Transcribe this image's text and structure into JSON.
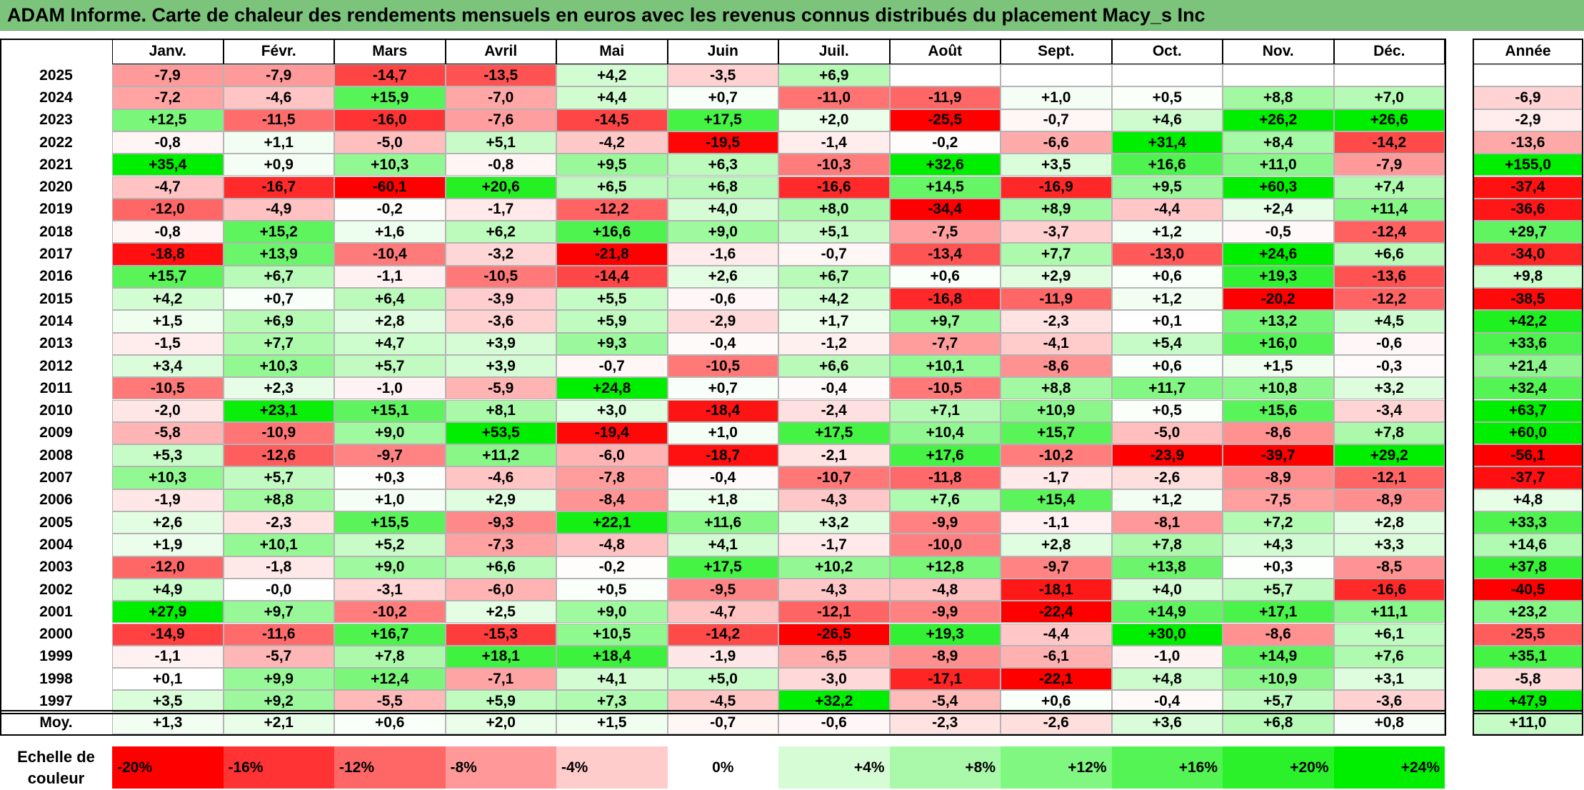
{
  "title": "ADAM Informe. Carte de chaleur des rendements mensuels en euros avec les revenus connus distribués du placement Macy_s Inc",
  "colors": {
    "title_bg": "#7cc47c",
    "positive_max": "#00ee00",
    "negative_max": "#ff0000",
    "neutral": "#ffffff"
  },
  "chart_data": {
    "type": "heatmap",
    "title": "ADAM Informe. Carte de chaleur des rendements mensuels en euros avec les revenus connus distribués du placement Macy_s Inc",
    "months": [
      "Janv.",
      "Févr.",
      "Mars",
      "Avril",
      "Mai",
      "Juin",
      "Juil.",
      "Août",
      "Sept.",
      "Oct.",
      "Nov.",
      "Déc."
    ],
    "annual_header": "Année",
    "rows": [
      {
        "year": "2025",
        "values": [
          "-7,9",
          "-7,9",
          "-14,7",
          "-13,5",
          "+4,2",
          "-3,5",
          "+6,9",
          "",
          "",
          "",
          "",
          ""
        ],
        "annual": ""
      },
      {
        "year": "2024",
        "values": [
          "-7,2",
          "-4,6",
          "+15,9",
          "-7,0",
          "+4,4",
          "+0,7",
          "-11,0",
          "-11,9",
          "+1,0",
          "+0,5",
          "+8,8",
          "+7,0"
        ],
        "annual": "-6,9"
      },
      {
        "year": "2023",
        "values": [
          "+12,5",
          "-11,5",
          "-16,0",
          "-7,6",
          "-14,5",
          "+17,5",
          "+2,0",
          "-25,5",
          "-0,7",
          "+4,6",
          "+26,2",
          "+26,6"
        ],
        "annual": "-2,9"
      },
      {
        "year": "2022",
        "values": [
          "-0,8",
          "+1,1",
          "-5,0",
          "+5,1",
          "-4,2",
          "-19,5",
          "-1,4",
          "-0,2",
          "-6,6",
          "+31,4",
          "+8,4",
          "-14,2"
        ],
        "annual": "-13,6"
      },
      {
        "year": "2021",
        "values": [
          "+35,4",
          "+0,9",
          "+10,3",
          "-0,8",
          "+9,5",
          "+6,3",
          "-10,3",
          "+32,6",
          "+3,5",
          "+16,6",
          "+11,0",
          "-7,9"
        ],
        "annual": "+155,0"
      },
      {
        "year": "2020",
        "values": [
          "-4,7",
          "-16,7",
          "-60,1",
          "+20,6",
          "+6,5",
          "+6,8",
          "-16,6",
          "+14,5",
          "-16,9",
          "+9,5",
          "+60,3",
          "+7,4"
        ],
        "annual": "-37,4"
      },
      {
        "year": "2019",
        "values": [
          "-12,0",
          "-4,9",
          "-0,2",
          "-1,7",
          "-12,2",
          "+4,0",
          "+8,0",
          "-34,4",
          "+8,9",
          "-4,4",
          "+2,4",
          "+11,4"
        ],
        "annual": "-36,6"
      },
      {
        "year": "2018",
        "values": [
          "-0,8",
          "+15,2",
          "+1,6",
          "+6,2",
          "+16,6",
          "+9,0",
          "+5,1",
          "-7,5",
          "-3,7",
          "+1,2",
          "-0,5",
          "-12,4"
        ],
        "annual": "+29,7"
      },
      {
        "year": "2017",
        "values": [
          "-18,8",
          "+13,9",
          "-10,4",
          "-3,2",
          "-21,8",
          "-1,6",
          "-0,7",
          "-13,4",
          "+7,7",
          "-13,0",
          "+24,6",
          "+6,6"
        ],
        "annual": "-34,0"
      },
      {
        "year": "2016",
        "values": [
          "+15,7",
          "+6,7",
          "-1,1",
          "-10,5",
          "-14,4",
          "+2,6",
          "+6,7",
          "+0,6",
          "+2,9",
          "+0,6",
          "+19,3",
          "-13,6"
        ],
        "annual": "+9,8"
      },
      {
        "year": "2015",
        "values": [
          "+4,2",
          "+0,7",
          "+6,4",
          "-3,9",
          "+5,5",
          "-0,6",
          "+4,2",
          "-16,8",
          "-11,9",
          "+1,2",
          "-20,2",
          "-12,2"
        ],
        "annual": "-38,5"
      },
      {
        "year": "2014",
        "values": [
          "+1,5",
          "+6,9",
          "+2,8",
          "-3,6",
          "+5,9",
          "-2,9",
          "+1,7",
          "+9,7",
          "-2,3",
          "+0,1",
          "+13,2",
          "+4,5"
        ],
        "annual": "+42,2"
      },
      {
        "year": "2013",
        "values": [
          "-1,5",
          "+7,7",
          "+4,7",
          "+3,9",
          "+9,3",
          "-0,4",
          "-1,2",
          "-7,7",
          "-4,1",
          "+5,4",
          "+16,0",
          "-0,6"
        ],
        "annual": "+33,6"
      },
      {
        "year": "2012",
        "values": [
          "+3,4",
          "+10,3",
          "+5,7",
          "+3,9",
          "-0,7",
          "-10,5",
          "+6,6",
          "+10,1",
          "-8,6",
          "+0,6",
          "+1,5",
          "-0,3"
        ],
        "annual": "+21,4"
      },
      {
        "year": "2011",
        "values": [
          "-10,5",
          "+2,3",
          "-1,0",
          "-5,9",
          "+24,8",
          "+0,7",
          "-0,4",
          "-10,5",
          "+8,8",
          "+11,7",
          "+10,8",
          "+3,2"
        ],
        "annual": "+32,4"
      },
      {
        "year": "2010",
        "values": [
          "-2,0",
          "+23,1",
          "+15,1",
          "+8,1",
          "+3,0",
          "-18,4",
          "-2,4",
          "+7,1",
          "+10,9",
          "+0,5",
          "+15,6",
          "-3,4"
        ],
        "annual": "+63,7"
      },
      {
        "year": "2009",
        "values": [
          "-5,8",
          "-10,9",
          "+9,0",
          "+53,5",
          "-19,4",
          "+1,0",
          "+17,5",
          "+10,4",
          "+15,7",
          "-5,0",
          "-8,6",
          "+7,8"
        ],
        "annual": "+60,0"
      },
      {
        "year": "2008",
        "values": [
          "+5,3",
          "-12,6",
          "-9,7",
          "+11,2",
          "-6,0",
          "-18,7",
          "-2,1",
          "+17,6",
          "-10,2",
          "-23,9",
          "-39,7",
          "+29,2"
        ],
        "annual": "-56,1"
      },
      {
        "year": "2007",
        "values": [
          "+10,3",
          "+5,7",
          "+0,3",
          "-4,6",
          "-7,8",
          "-0,4",
          "-10,7",
          "-11,8",
          "-1,7",
          "-2,6",
          "-8,9",
          "-12,1"
        ],
        "annual": "-37,7"
      },
      {
        "year": "2006",
        "values": [
          "-1,9",
          "+8,8",
          "+1,0",
          "+2,9",
          "-8,4",
          "+1,8",
          "-4,3",
          "+7,6",
          "+15,4",
          "+1,2",
          "-7,5",
          "-8,9"
        ],
        "annual": "+4,8"
      },
      {
        "year": "2005",
        "values": [
          "+2,6",
          "-2,3",
          "+15,5",
          "-9,3",
          "+22,1",
          "+11,6",
          "+3,2",
          "-9,9",
          "-1,1",
          "-8,1",
          "+7,2",
          "+2,8"
        ],
        "annual": "+33,3"
      },
      {
        "year": "2004",
        "values": [
          "+1,9",
          "+10,1",
          "+5,2",
          "-7,3",
          "-4,8",
          "+4,1",
          "-1,7",
          "-10,0",
          "+2,8",
          "+7,8",
          "+4,3",
          "+3,3"
        ],
        "annual": "+14,6"
      },
      {
        "year": "2003",
        "values": [
          "-12,0",
          "-1,8",
          "+9,0",
          "+6,6",
          "-0,2",
          "+17,5",
          "+10,2",
          "+12,8",
          "-9,7",
          "+13,8",
          "+0,3",
          "-8,5"
        ],
        "annual": "+37,8"
      },
      {
        "year": "2002",
        "values": [
          "+4,9",
          "-0,0",
          "-3,1",
          "-6,0",
          "+0,5",
          "-9,5",
          "-4,3",
          "-4,8",
          "-18,1",
          "+4,0",
          "+5,7",
          "-16,6"
        ],
        "annual": "-40,5"
      },
      {
        "year": "2001",
        "values": [
          "+27,9",
          "+9,7",
          "-10,2",
          "+2,5",
          "+9,0",
          "-4,7",
          "-12,1",
          "-9,9",
          "-22,4",
          "+14,9",
          "+17,1",
          "+11,1"
        ],
        "annual": "+23,2"
      },
      {
        "year": "2000",
        "values": [
          "-14,9",
          "-11,6",
          "+16,7",
          "-15,3",
          "+10,5",
          "-14,2",
          "-26,5",
          "+19,3",
          "-4,4",
          "+30,0",
          "-8,6",
          "+6,1"
        ],
        "annual": "-25,5"
      },
      {
        "year": "1999",
        "values": [
          "-1,1",
          "-5,7",
          "+7,8",
          "+18,1",
          "+18,4",
          "-1,9",
          "-6,5",
          "-8,9",
          "-6,1",
          "-1,0",
          "+14,9",
          "+7,6"
        ],
        "annual": "+35,1"
      },
      {
        "year": "1998",
        "values": [
          "+0,1",
          "+9,9",
          "+12,4",
          "-7,1",
          "+4,1",
          "+5,0",
          "-3,0",
          "-17,1",
          "-22,1",
          "+4,8",
          "+10,9",
          "+3,1"
        ],
        "annual": "-5,8"
      },
      {
        "year": "1997",
        "values": [
          "+3,5",
          "+9,2",
          "-5,5",
          "+5,9",
          "+7,3",
          "-4,5",
          "+32,2",
          "-5,4",
          "+0,6",
          "-0,4",
          "+5,7",
          "-3,6"
        ],
        "annual": "+47,9"
      }
    ],
    "average": {
      "label": "Moy.",
      "values": [
        "+1,3",
        "+2,1",
        "+0,6",
        "+2,0",
        "+1,5",
        "-0,7",
        "-0,6",
        "-2,3",
        "-2,6",
        "+3,6",
        "+6,8",
        "+0,8"
      ],
      "annual": "+11,0"
    },
    "color_scale": {
      "label_line1": "Echelle de",
      "label_line2": "couleur",
      "steps": [
        "-20%",
        "-16%",
        "-12%",
        "-8%",
        "-4%",
        "0%",
        "+4%",
        "+8%",
        "+12%",
        "+16%",
        "+20%",
        "+24%"
      ]
    }
  }
}
